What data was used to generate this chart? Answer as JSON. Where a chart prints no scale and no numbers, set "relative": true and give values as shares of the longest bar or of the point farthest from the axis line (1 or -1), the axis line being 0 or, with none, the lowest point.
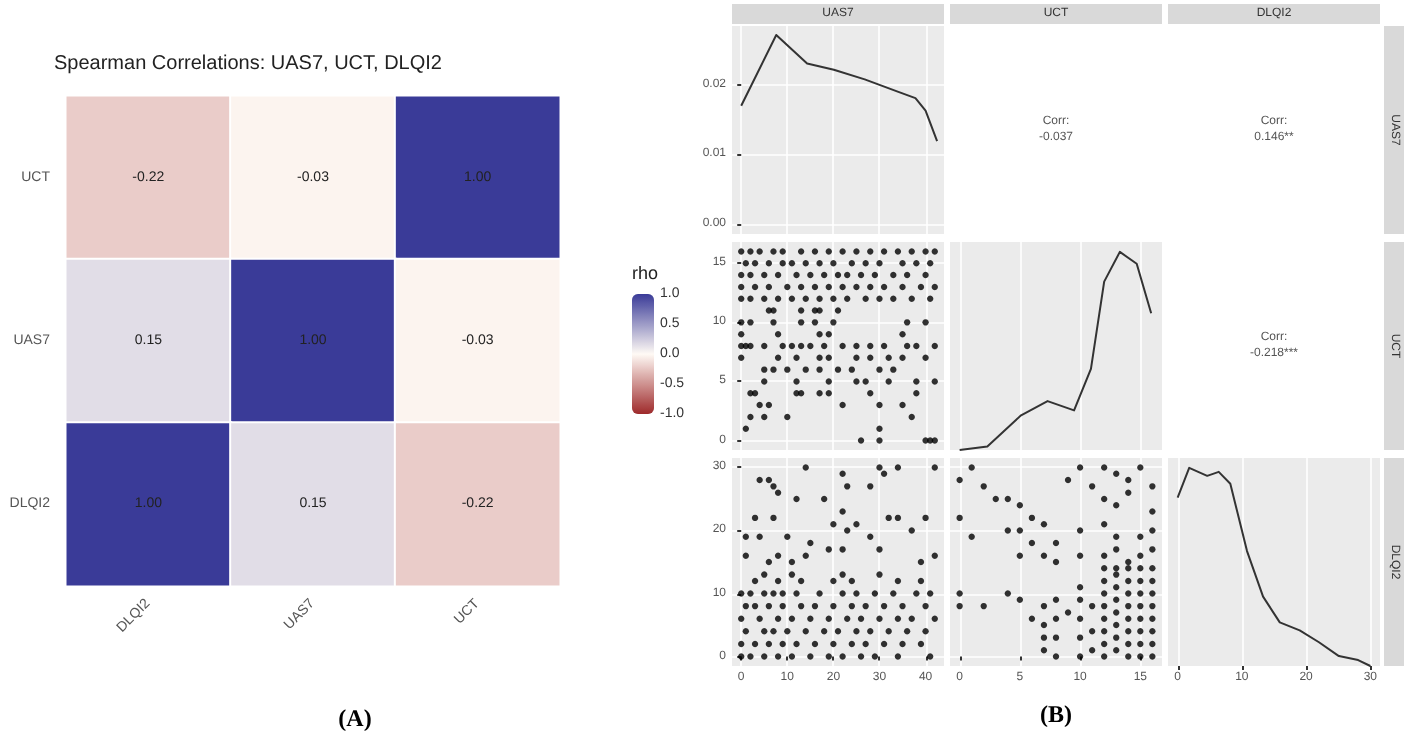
{
  "chart_data": [
    {
      "type": "heatmap",
      "title": "Spearman Correlations: UAS7, UCT, DLQI2",
      "categories": [
        "DLQI2",
        "UAS7",
        "UCT"
      ],
      "y_categories": [
        "UCT",
        "UAS7",
        "DLQI2"
      ],
      "cells": [
        [
          -0.22,
          -0.03,
          1.0
        ],
        [
          0.15,
          1.0,
          -0.03
        ],
        [
          1.0,
          0.15,
          -0.22
        ]
      ],
      "cell_labels": [
        [
          "-0.22",
          "-0.03",
          "1.00"
        ],
        [
          "0.15",
          "1.00",
          "-0.03"
        ],
        [
          "1.00",
          "0.15",
          "-0.22"
        ]
      ],
      "clabel": "rho",
      "clim": [
        -1,
        1
      ],
      "cticks": [
        {
          "value": 1,
          "label": "1.0"
        },
        {
          "value": 0.5,
          "label": "0.5"
        },
        {
          "value": 0,
          "label": "0.0"
        },
        {
          "value": -0.5,
          "label": "-0.5"
        },
        {
          "value": -1,
          "label": "-1.0"
        }
      ],
      "annotations": [
        "(A)"
      ]
    },
    {
      "type": "line",
      "title": "UAS7",
      "x": [
        0,
        7.6,
        14.3,
        20.1,
        26.8,
        34.1,
        37.8,
        40,
        42.5
      ],
      "series": [
        {
          "color": "#333333",
          "values": [
            0.017,
            0.0272,
            0.0231,
            0.0222,
            0.0208,
            0.019,
            0.0181,
            0.0163,
            0.0119
          ]
        }
      ],
      "xlim": [
        -2,
        44
      ],
      "xticks": [
        0,
        10,
        20,
        30,
        40
      ],
      "ylim": [
        -0.0015,
        0.0285
      ],
      "yticks": [
        {
          "value": 0,
          "label": "0.00"
        },
        {
          "value": 0.01,
          "label": "0.01"
        },
        {
          "value": 0.02,
          "label": "0.02"
        }
      ],
      "grid": true,
      "tick_labels": "y"
    },
    {
      "type": "other",
      "title": "UCT",
      "annotations": [
        "Corr:",
        "-0.037"
      ]
    },
    {
      "type": "other",
      "title": "DLQI2",
      "y2label": "UAS7",
      "annotations": [
        "Corr:",
        "0.146**"
      ]
    },
    {
      "type": "scatter",
      "marker": "circle",
      "grid": true,
      "tick_labels": "y",
      "xlim": [
        -2,
        44
      ],
      "xticks": [
        0,
        10,
        20,
        30,
        40
      ],
      "ylim": [
        -0.8,
        16.8
      ],
      "yticks": [
        0,
        5,
        10,
        15
      ],
      "x": [
        0,
        2,
        4,
        7,
        9,
        13,
        16,
        19,
        22,
        25,
        28,
        31,
        34,
        37,
        40,
        42,
        1,
        3,
        6,
        9,
        11,
        14,
        17,
        20,
        24,
        27,
        30,
        35,
        38,
        41,
        0,
        2,
        5,
        8,
        12,
        15,
        18,
        21,
        23,
        26,
        29,
        33,
        36,
        40,
        0,
        3,
        6,
        10,
        13,
        16,
        19,
        22,
        25,
        28,
        31,
        35,
        39,
        42,
        0,
        2,
        5,
        8,
        11,
        14,
        17,
        20,
        23,
        27,
        30,
        33,
        37,
        41,
        6,
        7,
        13,
        16,
        17,
        21,
        0,
        2,
        7,
        13,
        16,
        20,
        36,
        40,
        0,
        8,
        17,
        19,
        35,
        0,
        1,
        2,
        5,
        9,
        11,
        13,
        15,
        18,
        22,
        25,
        28,
        31,
        36,
        38,
        42,
        0,
        8,
        12,
        17,
        19,
        25,
        28,
        32,
        35,
        40,
        5,
        7,
        10,
        14,
        17,
        21,
        24,
        30,
        33,
        5,
        12,
        19,
        25,
        27,
        32,
        38,
        42,
        2,
        3,
        12,
        13,
        17,
        19,
        28,
        38,
        4,
        6,
        22,
        30,
        35,
        2,
        5,
        10,
        37,
        1,
        30,
        26,
        30,
        40,
        41,
        42
      ],
      "series": [
        {
          "color": "#000000",
          "values": [
            16,
            16,
            16,
            16,
            16,
            16,
            16,
            16,
            16,
            16,
            16,
            16,
            16,
            16,
            16,
            16,
            15,
            15,
            15,
            15,
            15,
            15,
            15,
            15,
            15,
            15,
            15,
            15,
            15,
            15,
            14,
            14,
            14,
            14,
            14,
            14,
            14,
            14,
            14,
            14,
            14,
            14,
            14,
            14,
            13,
            13,
            13,
            13,
            13,
            13,
            13,
            13,
            13,
            13,
            13,
            13,
            13,
            13,
            12,
            12,
            12,
            12,
            12,
            12,
            12,
            12,
            12,
            12,
            12,
            12,
            12,
            12,
            11,
            11,
            11,
            11,
            11,
            11,
            10,
            10,
            10,
            10,
            10,
            10,
            10,
            10,
            9,
            9,
            9,
            9,
            9,
            8,
            8,
            8,
            8,
            8,
            8,
            8,
            8,
            8,
            8,
            8,
            8,
            8,
            8,
            8,
            8,
            7,
            7,
            7,
            7,
            7,
            7,
            7,
            7,
            7,
            7,
            6,
            6,
            6,
            6,
            6,
            6,
            6,
            6,
            6,
            5,
            5,
            5,
            5,
            5,
            5,
            5,
            5,
            4,
            4,
            4,
            4,
            4,
            4,
            4,
            4,
            3,
            3,
            3,
            3,
            3,
            2,
            2,
            2,
            2,
            1,
            1,
            0,
            0,
            0,
            0,
            0
          ]
        }
      ]
    },
    {
      "type": "line",
      "relative": true,
      "x": [
        0,
        2.3,
        5.1,
        7.3,
        9.5,
        10.9,
        12,
        13.3,
        14.7,
        15.9
      ],
      "series": [
        {
          "color": "#333333",
          "values": [
            0,
            0.018,
            0.175,
            0.247,
            0.2,
            0.41,
            0.85,
            1,
            0.94,
            0.69
          ]
        }
      ],
      "xlim": [
        -0.8,
        16.8
      ],
      "xticks": [
        0,
        5,
        10,
        15
      ],
      "grid": true,
      "tick_labels": false
    },
    {
      "type": "other",
      "y2label": "UCT",
      "annotations": [
        "Corr:",
        "-0.218***"
      ]
    },
    {
      "type": "scatter",
      "marker": "circle",
      "grid": true,
      "xlim": [
        -2,
        44
      ],
      "xticks": [
        0,
        10,
        20,
        30,
        40
      ],
      "ylim": [
        -1.5,
        31.5
      ],
      "yticks": [
        0,
        10,
        20,
        30
      ],
      "x": [
        4,
        6,
        7,
        8,
        14,
        22,
        30,
        31,
        34,
        42,
        3,
        7,
        12,
        18,
        22,
        23,
        28,
        32,
        34,
        40,
        1,
        4,
        10,
        15,
        20,
        23,
        25,
        28,
        37,
        1,
        6,
        8,
        11,
        14,
        19,
        22,
        30,
        39,
        42,
        3,
        8,
        13,
        20,
        24,
        34,
        39,
        5,
        11,
        22,
        30,
        0,
        2,
        5,
        7,
        9,
        12,
        17,
        22,
        25,
        29,
        33,
        38,
        41,
        1,
        3,
        6,
        9,
        13,
        16,
        20,
        24,
        27,
        31,
        35,
        40,
        0,
        4,
        8,
        11,
        15,
        19,
        23,
        26,
        30,
        34,
        37,
        42,
        1,
        5,
        7,
        10,
        14,
        18,
        21,
        25,
        28,
        32,
        36,
        40,
        0,
        3,
        6,
        9,
        12,
        16,
        20,
        24,
        27,
        31,
        35,
        39,
        0,
        2,
        5,
        8,
        11,
        15,
        19,
        22,
        26,
        29,
        34,
        41
      ],
      "series": [
        {
          "color": "#000000",
          "values": [
            28,
            28,
            27,
            26,
            30,
            29,
            30,
            29,
            30,
            30,
            22,
            22,
            25,
            25,
            23,
            27,
            27,
            22,
            22,
            22,
            19,
            19,
            19,
            18,
            21,
            20,
            21,
            19,
            20,
            16,
            15,
            16,
            15,
            16,
            17,
            17,
            17,
            15,
            16,
            12,
            12,
            12,
            12,
            12,
            12,
            12,
            13,
            13,
            13,
            13,
            10,
            10,
            10,
            10,
            10,
            10,
            10,
            10,
            10,
            10,
            10,
            10,
            10,
            8,
            8,
            8,
            8,
            8,
            8,
            8,
            8,
            8,
            8,
            8,
            8,
            6,
            6,
            6,
            6,
            6,
            6,
            6,
            6,
            6,
            6,
            6,
            6,
            4,
            4,
            4,
            4,
            4,
            4,
            4,
            4,
            4,
            4,
            4,
            4,
            2,
            2,
            2,
            2,
            2,
            2,
            2,
            2,
            2,
            2,
            2,
            2,
            0,
            0,
            0,
            0,
            0,
            0,
            0,
            0,
            0,
            0,
            0,
            0
          ]
        }
      ]
    },
    {
      "type": "scatter",
      "marker": "circle",
      "grid": true,
      "tick_labels": "x",
      "xlim": [
        -0.8,
        16.8
      ],
      "xticks": [
        0,
        5,
        10,
        15
      ],
      "ylim": [
        -1.5,
        31.5
      ],
      "yticks": [
        0,
        10,
        20,
        30
      ],
      "x": [
        0,
        1,
        2,
        0,
        3,
        4,
        5,
        6,
        7,
        4,
        1,
        5,
        6,
        8,
        9,
        10,
        11,
        12,
        13,
        14,
        15,
        16,
        12,
        13,
        14,
        16,
        10,
        12,
        13,
        15,
        16,
        5,
        7,
        8,
        10,
        12,
        13,
        14,
        15,
        16,
        0,
        0,
        2,
        4,
        5,
        6,
        9,
        7,
        7,
        7,
        7,
        8,
        8,
        8,
        8,
        10,
        10,
        10,
        10,
        10,
        11,
        11,
        11,
        12,
        12,
        12,
        12,
        12,
        12,
        12,
        12,
        13,
        13,
        13,
        13,
        13,
        13,
        13,
        13,
        14,
        14,
        14,
        14,
        14,
        14,
        14,
        14,
        15,
        15,
        15,
        15,
        15,
        15,
        15,
        15,
        16,
        16,
        16,
        16,
        16,
        16,
        16,
        16
      ],
      "series": [
        {
          "color": "#000000",
          "values": [
            28,
            30,
            27,
            22,
            25,
            25,
            24,
            22,
            21,
            20,
            19,
            20,
            18,
            18,
            28,
            30,
            27,
            30,
            29,
            28,
            30,
            27,
            25,
            24,
            26,
            23,
            20,
            21,
            19,
            19,
            20,
            16,
            16,
            15,
            16,
            16,
            17,
            15,
            16,
            17,
            10,
            8,
            8,
            10,
            9,
            6,
            7,
            1,
            3,
            5,
            8,
            0,
            3,
            6,
            9,
            0,
            3,
            6,
            9,
            11,
            1,
            4,
            8,
            0,
            2,
            4,
            6,
            8,
            10,
            12,
            14,
            1,
            3,
            5,
            7,
            9,
            11,
            13,
            14,
            0,
            2,
            4,
            6,
            8,
            10,
            12,
            14,
            0,
            2,
            4,
            6,
            8,
            10,
            12,
            14,
            0,
            2,
            4,
            6,
            8,
            10,
            12,
            14
          ]
        }
      ],
      "annotations": [
        "(B)"
      ]
    },
    {
      "type": "line",
      "relative": true,
      "y2label": "DLQI2",
      "x": [
        0,
        1.8,
        4.6,
        6.4,
        8.2,
        10.8,
        13.3,
        15.9,
        19,
        22,
        25.1,
        28.1,
        30
      ],
      "series": [
        {
          "color": "#333333",
          "values": [
            0.85,
            1,
            0.96,
            0.98,
            0.92,
            0.58,
            0.35,
            0.22,
            0.18,
            0.12,
            0.05,
            0.03,
            0
          ]
        }
      ],
      "xlim": [
        -1.5,
        31.5
      ],
      "xticks": [
        0,
        10,
        20,
        30
      ],
      "grid": true,
      "tick_labels": "x"
    }
  ]
}
